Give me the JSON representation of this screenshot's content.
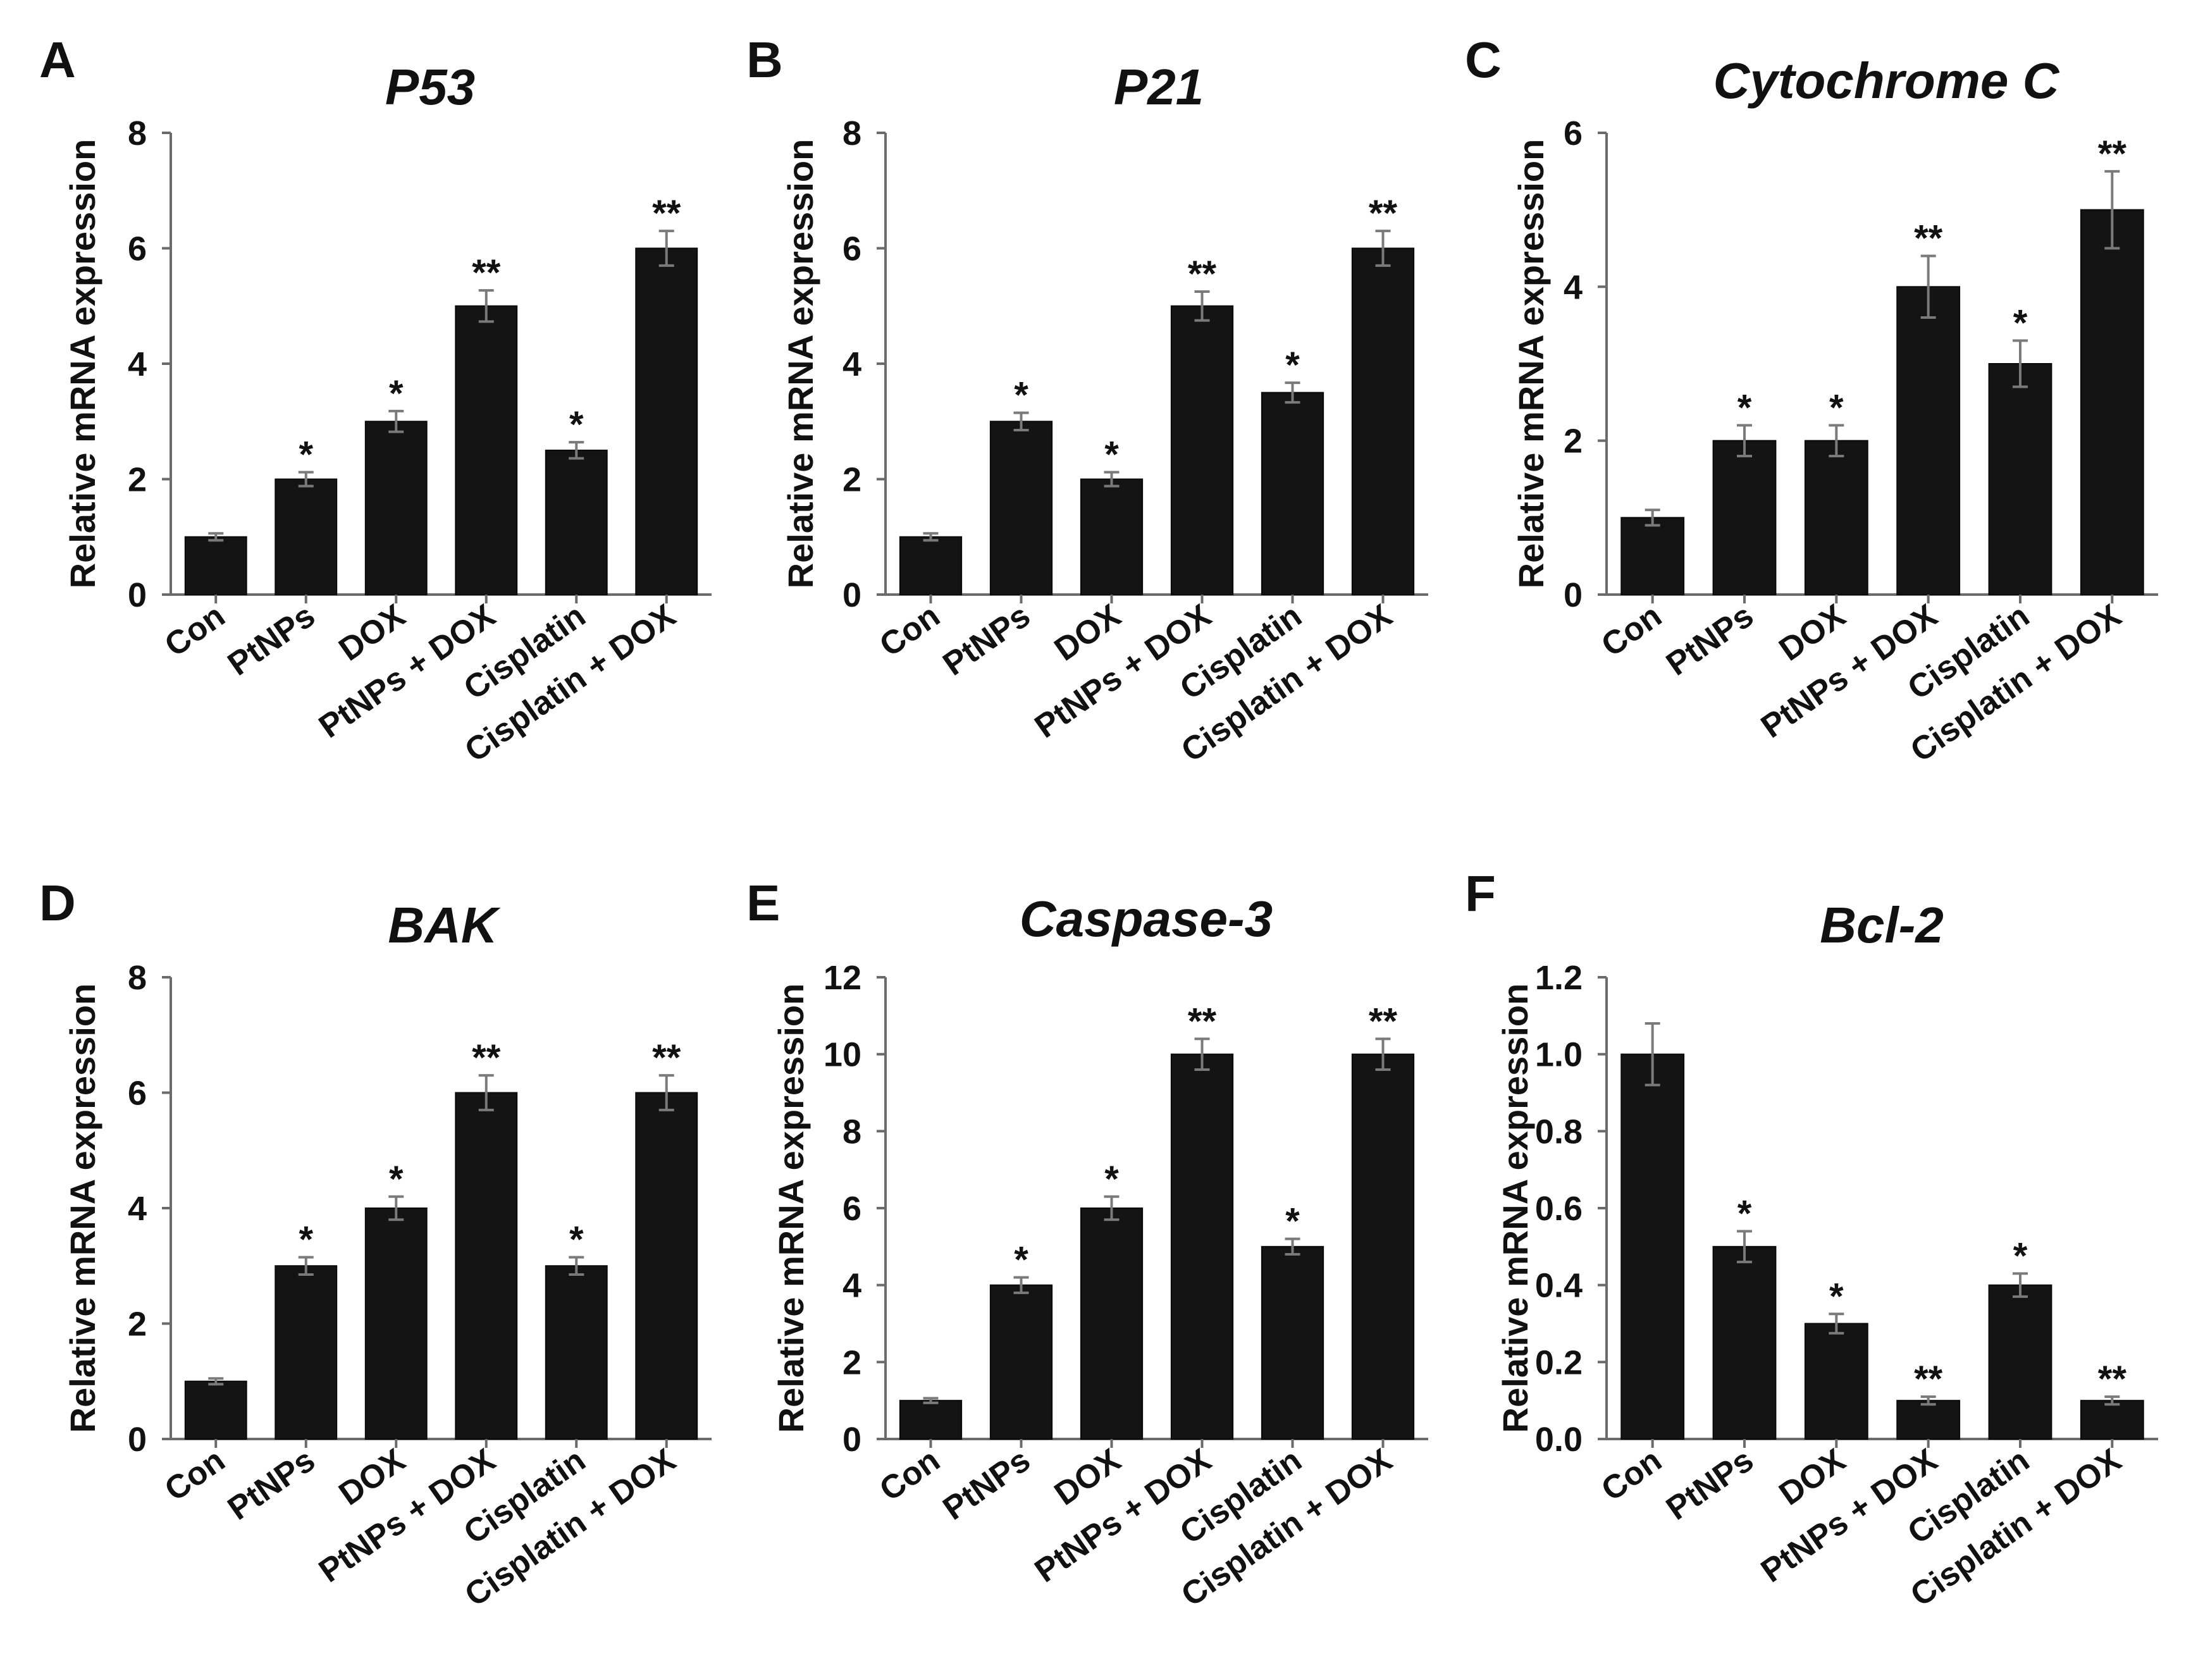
{
  "figure": {
    "charts": [
      {
        "letter": "A",
        "title": "P53"
      },
      {
        "letter": "B",
        "title": "P21"
      },
      {
        "letter": "C",
        "title": "Cytochrome C"
      },
      {
        "letter": "D",
        "title": "BAK"
      },
      {
        "letter": "E",
        "title": "Caspase-3"
      },
      {
        "letter": "F",
        "title": "Bcl-2"
      }
    ]
  },
  "chart_data": [
    {
      "panel": "A",
      "type": "bar",
      "title": "P53",
      "xlabel": "",
      "ylabel": "Relative mRNA expression",
      "categories": [
        "Con",
        "PtNPs",
        "DOX",
        "PtNPs + DOX",
        "Cisplatin",
        "Cisplatin + DOX"
      ],
      "values": [
        1.0,
        2.0,
        3.0,
        5.0,
        2.5,
        6.0
      ],
      "errors": [
        0.06,
        0.12,
        0.18,
        0.27,
        0.14,
        0.3
      ],
      "significance": [
        "",
        "*",
        "*",
        "**",
        "*",
        "**"
      ],
      "ylim": [
        0,
        8
      ],
      "yticks": [
        "0",
        "2",
        "4",
        "6",
        "8"
      ],
      "yticks_values": [
        0,
        2,
        4,
        6,
        8
      ],
      "bar_color": "#141414",
      "grid": false
    },
    {
      "panel": "B",
      "type": "bar",
      "title": "P21",
      "xlabel": "",
      "ylabel": "Relative mRNA expression",
      "categories": [
        "Con",
        "PtNPs",
        "DOX",
        "PtNPs + DOX",
        "Cisplatin",
        "Cisplatin + DOX"
      ],
      "values": [
        1.0,
        3.0,
        2.0,
        5.0,
        3.5,
        6.0
      ],
      "errors": [
        0.06,
        0.15,
        0.12,
        0.25,
        0.17,
        0.3
      ],
      "significance": [
        "",
        "*",
        "*",
        "**",
        "*",
        "**"
      ],
      "ylim": [
        0,
        8
      ],
      "yticks": [
        "0",
        "2",
        "4",
        "6",
        "8"
      ],
      "yticks_values": [
        0,
        2,
        4,
        6,
        8
      ],
      "bar_color": "#141414",
      "grid": false
    },
    {
      "panel": "C",
      "type": "bar",
      "title": "Cytochrome C",
      "xlabel": "",
      "ylabel": "Relative mRNA expression",
      "categories": [
        "Con",
        "PtNPs",
        "DOX",
        "PtNPs + DOX",
        "Cisplatin",
        "Cisplatin + DOX"
      ],
      "values": [
        1.0,
        2.0,
        2.0,
        4.0,
        3.0,
        5.0
      ],
      "errors": [
        0.1,
        0.2,
        0.2,
        0.4,
        0.3,
        0.5
      ],
      "significance": [
        "",
        "*",
        "*",
        "**",
        "*",
        "**"
      ],
      "ylim": [
        0,
        6
      ],
      "yticks": [
        "0",
        "2",
        "4",
        "6"
      ],
      "yticks_values": [
        0,
        2,
        4,
        6
      ],
      "bar_color": "#141414",
      "grid": false
    },
    {
      "panel": "D",
      "type": "bar",
      "title": "BAK",
      "xlabel": "",
      "ylabel": "Relative mRNA expression",
      "categories": [
        "Con",
        "PtNPs",
        "DOX",
        "PtNPs + DOX",
        "Cisplatin",
        "Cisplatin + DOX"
      ],
      "values": [
        1.0,
        3.0,
        4.0,
        6.0,
        3.0,
        6.0
      ],
      "errors": [
        0.05,
        0.15,
        0.2,
        0.3,
        0.15,
        0.3
      ],
      "significance": [
        "",
        "*",
        "*",
        "**",
        "*",
        "**"
      ],
      "ylim": [
        0,
        8
      ],
      "yticks": [
        "0",
        "2",
        "4",
        "6",
        "8"
      ],
      "yticks_values": [
        0,
        2,
        4,
        6,
        8
      ],
      "bar_color": "#141414",
      "grid": false
    },
    {
      "panel": "E",
      "type": "bar",
      "title": "Caspase-3",
      "xlabel": "",
      "ylabel": "Relative mRNA expression",
      "categories": [
        "Con",
        "PtNPs",
        "DOX",
        "PtNPs + DOX",
        "Cisplatin",
        "Cisplatin + DOX"
      ],
      "values": [
        1.0,
        4.0,
        6.0,
        10.0,
        5.0,
        10.0
      ],
      "errors": [
        0.06,
        0.2,
        0.3,
        0.4,
        0.2,
        0.4
      ],
      "significance": [
        "",
        "*",
        "*",
        "**",
        "*",
        "**"
      ],
      "ylim": [
        0,
        12
      ],
      "yticks": [
        "0",
        "2",
        "4",
        "6",
        "8",
        "10",
        "12"
      ],
      "yticks_values": [
        0,
        2,
        4,
        6,
        8,
        10,
        12
      ],
      "bar_color": "#141414",
      "grid": false
    },
    {
      "panel": "F",
      "type": "bar",
      "title": "Bcl-2",
      "xlabel": "",
      "ylabel": "Relative mRNA expression",
      "categories": [
        "Con",
        "PtNPs",
        "DOX",
        "PtNPs + DOX",
        "Cisplatin",
        "Cisplatin + DOX"
      ],
      "values": [
        1.0,
        0.5,
        0.3,
        0.1,
        0.4,
        0.1
      ],
      "errors": [
        0.08,
        0.04,
        0.025,
        0.01,
        0.03,
        0.01
      ],
      "significance": [
        "",
        "*",
        "*",
        "**",
        "*",
        "**"
      ],
      "ylim": [
        0,
        1.2
      ],
      "yticks": [
        "0.0",
        "0.2",
        "0.4",
        "0.6",
        "0.8",
        "1.0",
        "1.2"
      ],
      "yticks_values": [
        0,
        0.2,
        0.4,
        0.6,
        0.8,
        1.0,
        1.2
      ],
      "bar_color": "#141414",
      "grid": false
    }
  ]
}
